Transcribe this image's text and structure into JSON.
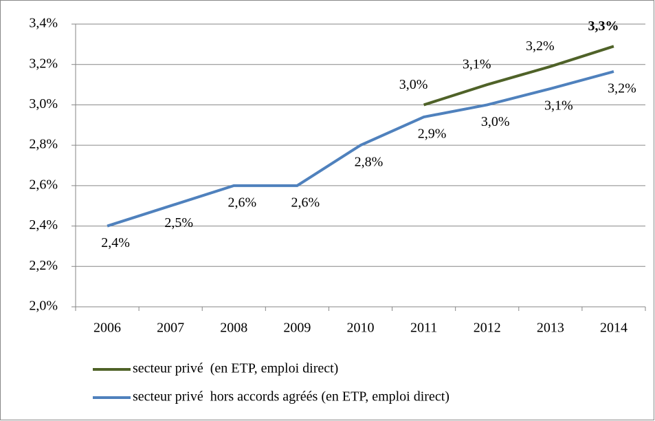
{
  "chart_data": {
    "type": "line",
    "categories": [
      "2006",
      "2007",
      "2008",
      "2009",
      "2010",
      "2011",
      "2012",
      "2013",
      "2014"
    ],
    "series": [
      {
        "name": "secteur privé  (en ETP, emploi direct)",
        "color": "#4f6228",
        "values": [
          null,
          null,
          null,
          null,
          null,
          3.0,
          3.1,
          3.19,
          3.29
        ],
        "value_labels": [
          null,
          null,
          null,
          null,
          null,
          "3,0%",
          "3,1%",
          "3,2%",
          "3,3%"
        ]
      },
      {
        "name": "secteur privé  hors accords agréés (en ETP, emploi direct)",
        "color": "#4f81bd",
        "values": [
          2.4,
          2.5,
          2.6,
          2.6,
          2.8,
          2.94,
          3.0,
          3.08,
          3.165
        ],
        "value_labels": [
          "2,4%",
          "2,5%",
          "2,6%",
          "2,6%",
          "2,8%",
          "2,9%",
          "3,0%",
          "3,1%",
          "3,2%"
        ]
      }
    ],
    "ylim": [
      2.0,
      3.4
    ],
    "yticks": [
      {
        "value": 2.0,
        "label": "2,0%"
      },
      {
        "value": 2.2,
        "label": "2,2%"
      },
      {
        "value": 2.4,
        "label": "2,4%"
      },
      {
        "value": 2.6,
        "label": "2,6%"
      },
      {
        "value": 2.8,
        "label": "2,8%"
      },
      {
        "value": 3.0,
        "label": "3,0%"
      },
      {
        "value": 3.2,
        "label": "3,2%"
      },
      {
        "value": 3.4,
        "label": "3,4%"
      }
    ],
    "grid": true
  }
}
